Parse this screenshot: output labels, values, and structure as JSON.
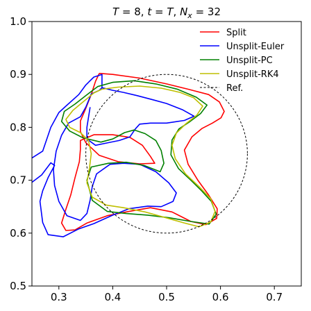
{
  "chart_data": {
    "type": "line",
    "title": "T = 8, t = T, N_x = 32",
    "title_parts": {
      "t1": "T",
      "t2": " = 8, ",
      "t3": "t",
      "t4": " = ",
      "t5": "T",
      "t6": ", ",
      "t7": "N",
      "t8": "x",
      "t9": " = 32"
    },
    "xlabel": "",
    "ylabel": "",
    "xlim": [
      0.25,
      0.75
    ],
    "ylim": [
      0.5,
      1.0
    ],
    "xticks": [
      0.3,
      0.4,
      0.5,
      0.6,
      0.7
    ],
    "xtick_labels": [
      "0.3",
      "0.4",
      "0.5",
      "0.6",
      "0.7"
    ],
    "yticks": [
      0.5,
      0.6,
      0.7,
      0.8,
      0.9,
      1.0
    ],
    "ytick_labels": [
      "0.5",
      "0.6",
      "0.7",
      "0.8",
      "0.9",
      "1.0"
    ],
    "grid": false,
    "legend_position": "top-right",
    "series": [
      {
        "name": "Split",
        "color": "#ff0000",
        "lines": [
          [
            [
              0.375,
              0.902
            ],
            [
              0.4,
              0.9
            ],
            [
              0.45,
              0.893
            ],
            [
              0.5,
              0.882
            ],
            [
              0.54,
              0.872
            ],
            [
              0.578,
              0.862
            ],
            [
              0.598,
              0.848
            ],
            [
              0.607,
              0.83
            ],
            [
              0.601,
              0.818
            ],
            [
              0.585,
              0.808
            ],
            [
              0.566,
              0.798
            ],
            [
              0.547,
              0.782
            ],
            [
              0.533,
              0.757
            ],
            [
              0.54,
              0.73
            ],
            [
              0.558,
              0.7
            ],
            [
              0.578,
              0.672
            ],
            [
              0.594,
              0.646
            ],
            [
              0.593,
              0.628
            ],
            [
              0.573,
              0.616
            ],
            [
              0.545,
              0.622
            ],
            [
              0.51,
              0.64
            ],
            [
              0.47,
              0.648
            ],
            [
              0.43,
              0.641
            ],
            [
              0.39,
              0.633
            ],
            [
              0.352,
              0.619
            ],
            [
              0.33,
              0.606
            ],
            [
              0.313,
              0.605
            ],
            [
              0.305,
              0.619
            ],
            [
              0.313,
              0.645
            ],
            [
              0.322,
              0.672
            ],
            [
              0.33,
              0.705
            ],
            [
              0.338,
              0.735
            ],
            [
              0.34,
              0.758
            ],
            [
              0.34,
              0.775
            ],
            [
              0.365,
              0.786
            ],
            [
              0.4,
              0.786
            ],
            [
              0.432,
              0.781
            ],
            [
              0.455,
              0.766
            ],
            [
              0.47,
              0.745
            ],
            [
              0.478,
              0.732
            ],
            [
              0.45,
              0.731
            ],
            [
              0.41,
              0.735
            ],
            [
              0.375,
              0.747
            ],
            [
              0.35,
              0.771
            ],
            [
              0.34,
              0.792
            ],
            [
              0.34,
              0.812
            ],
            [
              0.35,
              0.836
            ],
            [
              0.36,
              0.862
            ],
            [
              0.368,
              0.887
            ],
            [
              0.375,
              0.902
            ]
          ]
        ]
      },
      {
        "name": "Unsplit-Euler",
        "color": "#0000ff",
        "lines": [
          [
            [
              0.25,
              0.742
            ],
            [
              0.27,
              0.755
            ],
            [
              0.285,
              0.8
            ],
            [
              0.3,
              0.828
            ],
            [
              0.313,
              0.84
            ],
            [
              0.337,
              0.862
            ],
            [
              0.35,
              0.88
            ],
            [
              0.365,
              0.895
            ],
            [
              0.38,
              0.9
            ],
            [
              0.38,
              0.875
            ],
            [
              0.4,
              0.87
            ],
            [
              0.42,
              0.866
            ]
          ],
          [
            [
              0.25,
              0.696
            ],
            [
              0.268,
              0.71
            ],
            [
              0.285,
              0.733
            ],
            [
              0.292,
              0.728
            ],
            [
              0.28,
              0.705
            ],
            [
              0.27,
              0.68
            ],
            [
              0.265,
              0.66
            ],
            [
              0.27,
              0.62
            ],
            [
              0.28,
              0.597
            ],
            [
              0.308,
              0.593
            ],
            [
              0.337,
              0.608
            ],
            [
              0.365,
              0.618
            ],
            [
              0.4,
              0.634
            ],
            [
              0.43,
              0.646
            ],
            [
              0.465,
              0.651
            ],
            [
              0.49,
              0.65
            ],
            [
              0.512,
              0.66
            ],
            [
              0.518,
              0.676
            ],
            [
              0.504,
              0.695
            ],
            [
              0.48,
              0.716
            ],
            [
              0.45,
              0.73
            ],
            [
              0.42,
              0.732
            ],
            [
              0.395,
              0.73
            ],
            [
              0.37,
              0.712
            ],
            [
              0.362,
              0.688
            ],
            [
              0.358,
              0.662
            ],
            [
              0.352,
              0.637
            ],
            [
              0.34,
              0.624
            ],
            [
              0.315,
              0.633
            ],
            [
              0.3,
              0.66
            ],
            [
              0.292,
              0.69
            ],
            [
              0.29,
              0.72
            ],
            [
              0.295,
              0.755
            ],
            [
              0.305,
              0.785
            ],
            [
              0.318,
              0.808
            ],
            [
              0.34,
              0.82
            ],
            [
              0.35,
              0.838
            ],
            [
              0.36,
              0.863
            ],
            [
              0.375,
              0.87
            ],
            [
              0.38,
              0.875
            ]
          ],
          [
            [
              0.42,
              0.866
            ],
            [
              0.445,
              0.86
            ],
            [
              0.475,
              0.852
            ],
            [
              0.5,
              0.845
            ],
            [
              0.53,
              0.833
            ],
            [
              0.551,
              0.821
            ],
            [
              0.533,
              0.813
            ],
            [
              0.5,
              0.808
            ],
            [
              0.47,
              0.808
            ],
            [
              0.45,
              0.806
            ],
            [
              0.442,
              0.797
            ],
            [
              0.432,
              0.782
            ],
            [
              0.412,
              0.775
            ],
            [
              0.392,
              0.771
            ],
            [
              0.368,
              0.766
            ],
            [
              0.352,
              0.778
            ],
            [
              0.352,
              0.8
            ],
            [
              0.358,
              0.838
            ]
          ]
        ]
      },
      {
        "name": "Unsplit-PC",
        "color": "#008000",
        "lines": [
          [
            [
              0.35,
              0.86
            ],
            [
              0.372,
              0.877
            ],
            [
              0.4,
              0.885
            ],
            [
              0.44,
              0.888
            ],
            [
              0.48,
              0.882
            ],
            [
              0.52,
              0.872
            ],
            [
              0.555,
              0.857
            ],
            [
              0.575,
              0.842
            ],
            [
              0.563,
              0.826
            ],
            [
              0.542,
              0.81
            ],
            [
              0.523,
              0.797
            ],
            [
              0.51,
              0.776
            ],
            [
              0.508,
              0.748
            ],
            [
              0.522,
              0.722
            ],
            [
              0.545,
              0.7
            ],
            [
              0.565,
              0.68
            ],
            [
              0.583,
              0.66
            ],
            [
              0.592,
              0.636
            ],
            [
              0.579,
              0.617
            ],
            [
              0.545,
              0.622
            ],
            [
              0.505,
              0.629
            ],
            [
              0.465,
              0.634
            ],
            [
              0.425,
              0.637
            ],
            [
              0.39,
              0.641
            ],
            [
              0.362,
              0.662
            ],
            [
              0.352,
              0.7
            ],
            [
              0.36,
              0.725
            ],
            [
              0.392,
              0.732
            ],
            [
              0.425,
              0.734
            ],
            [
              0.458,
              0.728
            ],
            [
              0.488,
              0.716
            ],
            [
              0.495,
              0.732
            ],
            [
              0.49,
              0.756
            ],
            [
              0.48,
              0.775
            ],
            [
              0.46,
              0.788
            ],
            [
              0.44,
              0.795
            ],
            [
              0.422,
              0.79
            ],
            [
              0.4,
              0.778
            ],
            [
              0.378,
              0.772
            ],
            [
              0.345,
              0.78
            ],
            [
              0.32,
              0.793
            ],
            [
              0.305,
              0.811
            ],
            [
              0.31,
              0.83
            ],
            [
              0.33,
              0.844
            ],
            [
              0.35,
              0.86
            ]
          ]
        ]
      },
      {
        "name": "Unsplit-RK4",
        "color": "#bfbf00",
        "lines": [
          [
            [
              0.365,
              0.865
            ],
            [
              0.38,
              0.872
            ],
            [
              0.41,
              0.876
            ],
            [
              0.45,
              0.878
            ],
            [
              0.49,
              0.874
            ],
            [
              0.525,
              0.866
            ],
            [
              0.55,
              0.856
            ],
            [
              0.567,
              0.84
            ],
            [
              0.556,
              0.823
            ],
            [
              0.535,
              0.806
            ],
            [
              0.518,
              0.789
            ],
            [
              0.51,
              0.766
            ],
            [
              0.516,
              0.741
            ],
            [
              0.535,
              0.712
            ],
            [
              0.56,
              0.688
            ],
            [
              0.582,
              0.665
            ],
            [
              0.59,
              0.641
            ],
            [
              0.582,
              0.621
            ],
            [
              0.56,
              0.612
            ],
            [
              0.53,
              0.62
            ],
            [
              0.495,
              0.63
            ],
            [
              0.46,
              0.64
            ],
            [
              0.42,
              0.648
            ],
            [
              0.388,
              0.653
            ],
            [
              0.362,
              0.668
            ],
            [
              0.352,
              0.695
            ],
            [
              0.357,
              0.724
            ],
            [
              0.36,
              0.75
            ],
            [
              0.355,
              0.775
            ],
            [
              0.34,
              0.79
            ],
            [
              0.32,
              0.8
            ],
            [
              0.313,
              0.815
            ],
            [
              0.326,
              0.832
            ],
            [
              0.345,
              0.848
            ],
            [
              0.365,
              0.865
            ]
          ]
        ]
      },
      {
        "name": "Ref.",
        "color": "#000000",
        "dashed": true,
        "circle": {
          "cx": 0.5,
          "cy": 0.75,
          "r": 0.15
        }
      }
    ]
  }
}
